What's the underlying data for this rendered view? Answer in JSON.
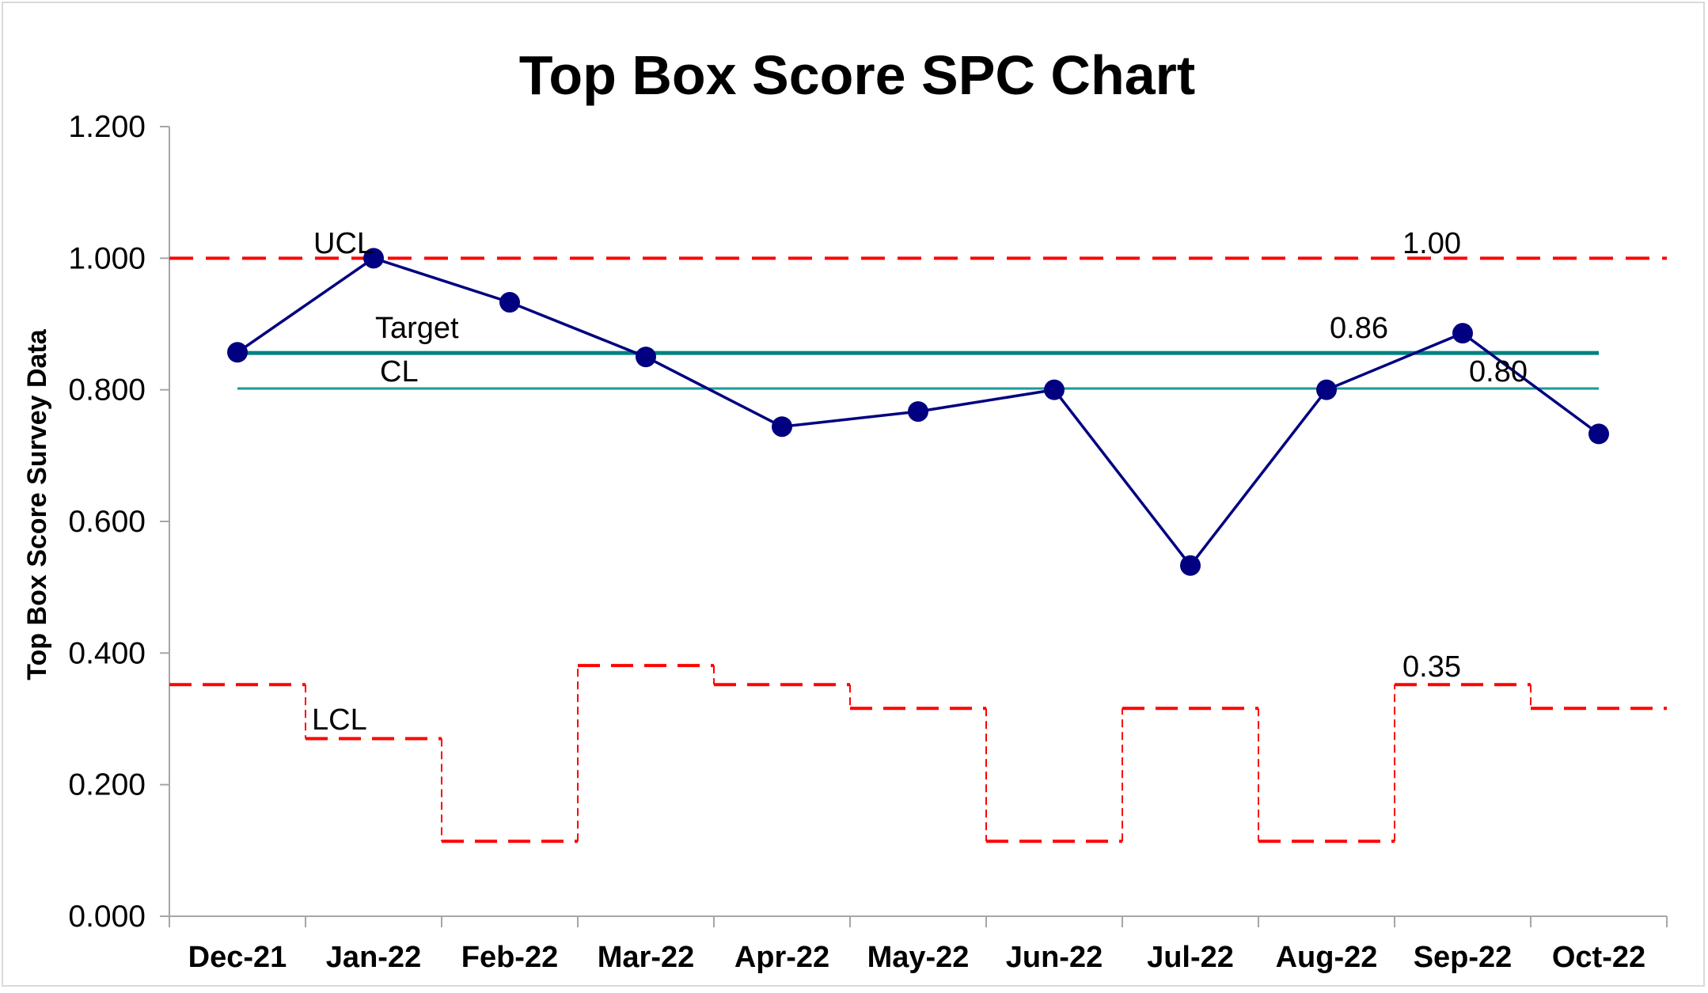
{
  "chart_data": {
    "type": "line",
    "title": "Top Box Score SPC Chart",
    "xlabel": "",
    "ylabel": "Top Box Score Survey Data",
    "ylim": [
      0,
      1.2
    ],
    "yticks": [
      0,
      0.2,
      0.4,
      0.6,
      0.8,
      1.0,
      1.2
    ],
    "ytick_labels": [
      "0.000",
      "0.200",
      "0.400",
      "0.600",
      "0.800",
      "1.000",
      "1.200"
    ],
    "categories": [
      "Dec-21",
      "Jan-22",
      "Feb-22",
      "Mar-22",
      "Apr-22",
      "May-22",
      "Jun-22",
      "Jul-22",
      "Aug-22",
      "Sep-22",
      "Oct-22"
    ],
    "grid": false,
    "series": [
      {
        "key": "data",
        "color": "#000080",
        "values": [
          0.857,
          1.0,
          0.933,
          0.85,
          0.744,
          0.767,
          0.8,
          0.533,
          0.8,
          0.886,
          0.733
        ]
      },
      {
        "key": "ucl",
        "color": "#ff0000",
        "style": "dashed",
        "values": [
          1.0,
          1.0,
          1.0,
          1.0,
          1.0,
          1.0,
          1.0,
          1.0,
          1.0,
          1.0,
          1.0
        ]
      },
      {
        "key": "target",
        "color": "#008080",
        "values": [
          0.856,
          0.856,
          0.856,
          0.856,
          0.856,
          0.856,
          0.856,
          0.856,
          0.856,
          0.856,
          0.856
        ]
      },
      {
        "key": "cl",
        "color": "#1a9a9a",
        "values": [
          0.802,
          0.802,
          0.802,
          0.802,
          0.802,
          0.802,
          0.802,
          0.802,
          0.802,
          0.802,
          0.802
        ]
      },
      {
        "key": "lcl",
        "color": "#ff0000",
        "style": "dashed-step",
        "values": [
          0.352,
          0.27,
          0.114,
          0.381,
          0.352,
          0.316,
          0.114,
          0.316,
          0.114,
          0.352,
          0.316
        ]
      }
    ],
    "annotations": {
      "ucl_label": "UCL",
      "target_label": "Target",
      "cl_label": "CL",
      "lcl_label": "LCL",
      "ucl_value": "1.00",
      "target_value": "0.86",
      "cl_value": "0.80",
      "lcl_value": "0.35"
    }
  }
}
